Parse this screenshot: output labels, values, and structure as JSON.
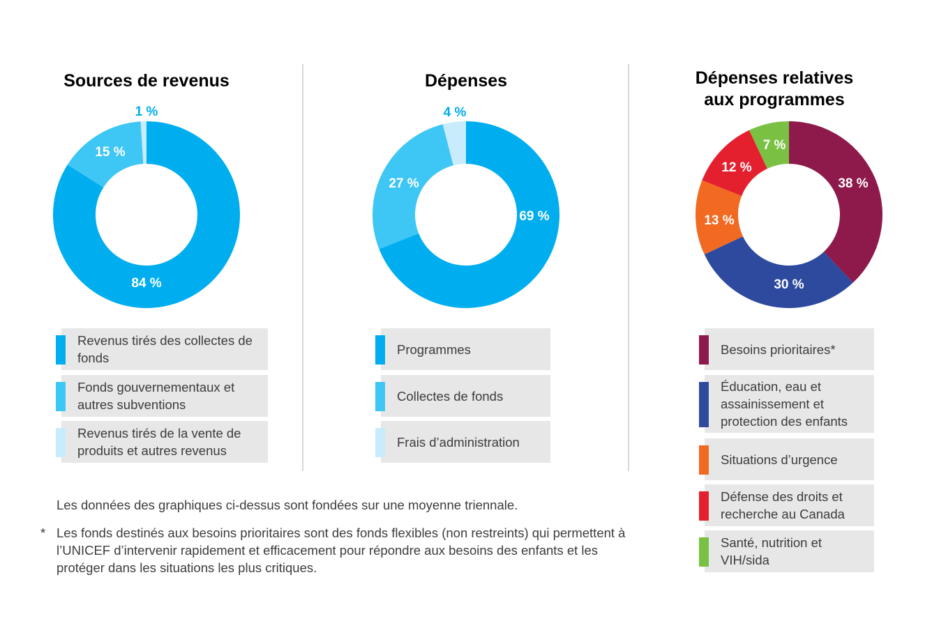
{
  "notes": {
    "average": "Les données des graphiques ci-dessus sont fondées sur une moyenne triennale.",
    "asterisk": "*",
    "priority": "Les fonds destinés aux besoins prioritaires sont des fonds flexibles (non restreints) qui permettent à l’UNICEF d’intervenir rapidement et efficacement pour répondre aux besoins des enfants et les protéger dans les situations les plus critiques."
  },
  "chart_data": [
    {
      "type": "pie",
      "title": "Sources de revenus",
      "categories": [
        "Revenus tirés des collectes de fonds",
        "Fonds gouvernementaux et autres subventions",
        "Revenus tirés de la vente de produits et autres revenus"
      ],
      "values": [
        84,
        15,
        1
      ],
      "labels": [
        "84 %",
        "15 %",
        "1 %"
      ],
      "colors": [
        "#00aeef",
        "#3ec6f4",
        "#c8ecfb"
      ]
    },
    {
      "type": "pie",
      "title": "Dépenses",
      "categories": [
        "Programmes",
        "Collectes de fonds",
        "Frais d’administration"
      ],
      "values": [
        69,
        27,
        4
      ],
      "labels": [
        "69 %",
        "27 %",
        "4 %"
      ],
      "colors": [
        "#00aeef",
        "#3ec6f4",
        "#c8ecfb"
      ]
    },
    {
      "type": "pie",
      "title": "Dépenses relatives aux programmes",
      "categories": [
        "Besoins prioritaires*",
        "Éducation, eau et assainissement et protection des enfants",
        "Situations d’urgence",
        "Défense des droits et recherche au Canada",
        "Santé, nutrition et VIH/sida"
      ],
      "values": [
        38,
        30,
        13,
        12,
        7
      ],
      "labels": [
        "38 %",
        "30 %",
        "13 %",
        "12 %",
        "7 %"
      ],
      "colors": [
        "#8e1a4b",
        "#2e4a9e",
        "#f26922",
        "#e4202f",
        "#7ac143"
      ]
    }
  ]
}
